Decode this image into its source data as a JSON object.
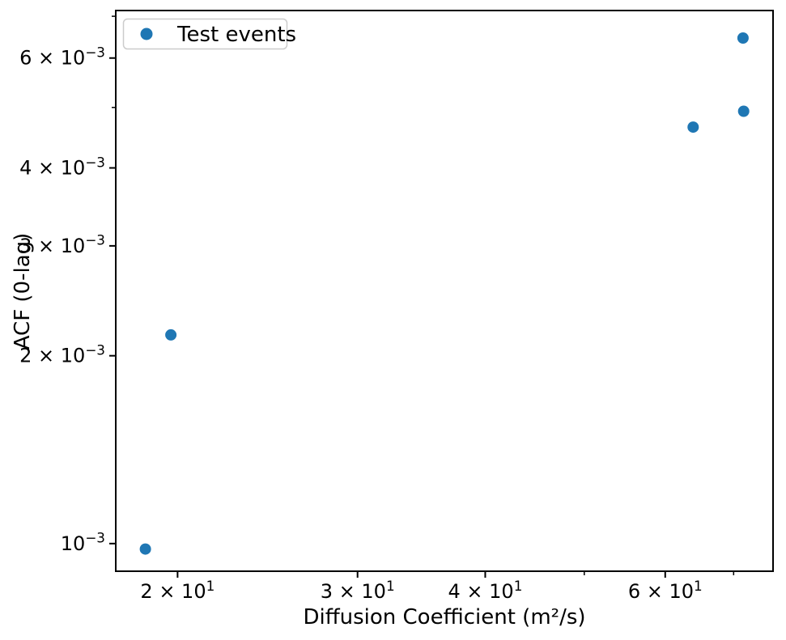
{
  "figure": {
    "background": "#ffffff",
    "axis_color": "#000000",
    "text_color": "#000000"
  },
  "chart_data": {
    "type": "scatter",
    "title": "",
    "xlabel": "Diffusion Coefficient (m²/s)",
    "ylabel": "ACF (0-lag)",
    "xscale": "log",
    "yscale": "log",
    "xlim": [
      17.4,
      76.5
    ],
    "ylim": [
      0.000903,
      0.00715
    ],
    "grid": false,
    "legend": {
      "position": "upper left",
      "entries": [
        {
          "label": "Test events",
          "marker_color": "#1f77b4"
        }
      ]
    },
    "series": [
      {
        "name": "Test events",
        "marker": "circle",
        "marker_color": "#1f77b4",
        "points": [
          {
            "x": 18.6,
            "y": 0.00098
          },
          {
            "x": 19.7,
            "y": 0.00216
          },
          {
            "x": 63.9,
            "y": 0.00465
          },
          {
            "x": 71.6,
            "y": 0.00493
          },
          {
            "x": 71.5,
            "y": 0.00646
          }
        ]
      }
    ],
    "x_ticks": {
      "major": [
        {
          "value": 20,
          "mantissa": "2 × 10",
          "exp": "1"
        },
        {
          "value": 30,
          "mantissa": "3 × 10",
          "exp": "1"
        },
        {
          "value": 40,
          "mantissa": "4 × 10",
          "exp": "1"
        },
        {
          "value": 60,
          "mantissa": "6 × 10",
          "exp": "1"
        }
      ],
      "minor": [
        50,
        70
      ]
    },
    "y_ticks": {
      "major": [
        {
          "value": 0.006,
          "mantissa": "6 × 10",
          "exp": "−3"
        },
        {
          "value": 0.004,
          "mantissa": "4 × 10",
          "exp": "−3"
        },
        {
          "value": 0.003,
          "mantissa": "3 × 10",
          "exp": "−3"
        },
        {
          "value": 0.002,
          "mantissa": "2 × 10",
          "exp": "−3"
        },
        {
          "value": 0.001,
          "mantissa": "10",
          "exp": "−3"
        }
      ],
      "minor": [
        0.007,
        0.005
      ]
    }
  }
}
